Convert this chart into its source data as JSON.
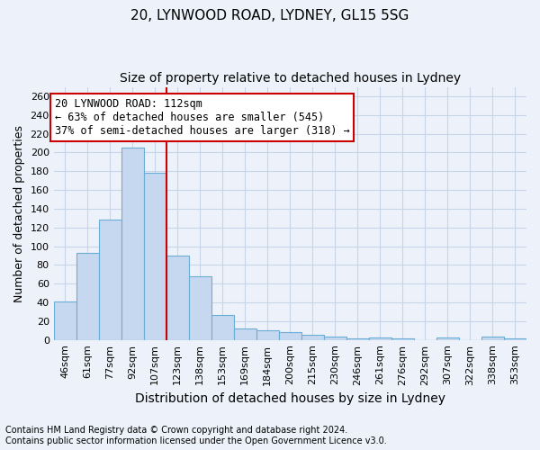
{
  "title1": "20, LYNWOOD ROAD, LYDNEY, GL15 5SG",
  "title2": "Size of property relative to detached houses in Lydney",
  "xlabel": "Distribution of detached houses by size in Lydney",
  "ylabel": "Number of detached properties",
  "footnote1": "Contains HM Land Registry data © Crown copyright and database right 2024.",
  "footnote2": "Contains public sector information licensed under the Open Government Licence v3.0.",
  "bar_labels": [
    "46sqm",
    "61sqm",
    "77sqm",
    "92sqm",
    "107sqm",
    "123sqm",
    "138sqm",
    "153sqm",
    "169sqm",
    "184sqm",
    "200sqm",
    "215sqm",
    "230sqm",
    "246sqm",
    "261sqm",
    "276sqm",
    "292sqm",
    "307sqm",
    "322sqm",
    "338sqm",
    "353sqm"
  ],
  "bar_values": [
    41,
    93,
    128,
    205,
    178,
    90,
    68,
    27,
    12,
    10,
    8,
    5,
    4,
    2,
    3,
    2,
    0,
    3,
    0,
    4,
    2
  ],
  "bar_color": "#c5d8ef",
  "bar_edgecolor": "#6aaed6",
  "grid_color": "#c8d4e8",
  "background_color": "#edf2fa",
  "vline_x": 4.5,
  "vline_color": "#cc0000",
  "annotation_line1": "20 LYNWOOD ROAD: 112sqm",
  "annotation_line2": "← 63% of detached houses are smaller (545)",
  "annotation_line3": "37% of semi-detached houses are larger (318) →",
  "annotation_box_color": "white",
  "annotation_box_edgecolor": "#cc0000",
  "ylim": [
    0,
    270
  ],
  "yticks": [
    0,
    20,
    40,
    60,
    80,
    100,
    120,
    140,
    160,
    180,
    200,
    220,
    240,
    260
  ],
  "title1_fontsize": 11,
  "title2_fontsize": 10,
  "xlabel_fontsize": 10,
  "ylabel_fontsize": 9,
  "tick_fontsize": 8,
  "annotation_fontsize": 8.5,
  "footnote_fontsize": 7.0
}
